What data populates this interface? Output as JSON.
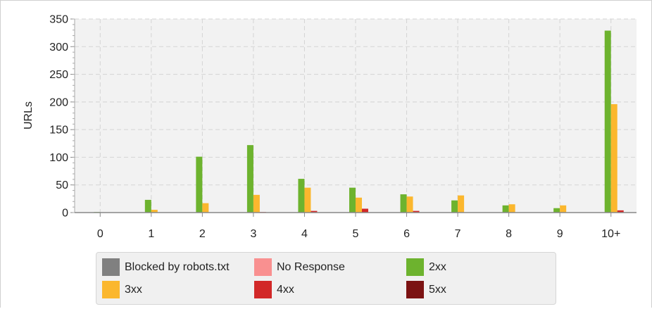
{
  "chart_data": {
    "type": "bar",
    "ylabel": "URLs",
    "xlabel": "",
    "ylim": [
      0,
      350
    ],
    "yticks": [
      0,
      50,
      100,
      150,
      200,
      250,
      300,
      350
    ],
    "grid": true,
    "legend_position": "bottom",
    "categories": [
      "0",
      "1",
      "2",
      "3",
      "4",
      "5",
      "6",
      "7",
      "8",
      "9",
      "10+"
    ],
    "series": [
      {
        "name": "Blocked by robots.txt",
        "color": "#808080",
        "values": [
          0,
          0,
          0,
          0,
          0,
          0,
          0,
          0,
          0,
          0,
          0
        ]
      },
      {
        "name": "No Response",
        "color": "#f99090",
        "values": [
          0,
          0,
          0,
          0,
          0,
          0,
          0,
          0,
          0,
          0,
          0
        ]
      },
      {
        "name": "2xx",
        "color": "#6db32e",
        "values": [
          1,
          23,
          101,
          122,
          61,
          45,
          33,
          22,
          13,
          8,
          329
        ]
      },
      {
        "name": "3xx",
        "color": "#fbb72e",
        "values": [
          0,
          5,
          17,
          32,
          45,
          27,
          29,
          31,
          15,
          13,
          196
        ]
      },
      {
        "name": "4xx",
        "color": "#d22828",
        "values": [
          0,
          0,
          0,
          1,
          3,
          7,
          3,
          0,
          0,
          0,
          4
        ]
      },
      {
        "name": "5xx",
        "color": "#7b1212",
        "values": [
          0,
          0,
          0,
          0,
          0,
          0,
          0,
          0,
          0,
          0,
          0
        ]
      }
    ]
  }
}
